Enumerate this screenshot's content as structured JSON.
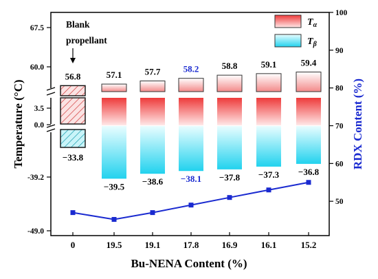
{
  "chart_data": {
    "type": "bar",
    "categories": [
      "0",
      "19.5",
      "19.1",
      "17.8",
      "16.9",
      "16.1",
      "15.2"
    ],
    "xlabel": "Bu-NENA Content (%)",
    "ylabel_left": "Temperature (°C)",
    "ylabel_right": "RDX Content (%)",
    "left_ticks": [
      "67.5",
      "60.0",
      "3.5",
      "0.0",
      "-39.2",
      "-49.0"
    ],
    "right_ticks": [
      "100",
      "90",
      "80",
      "70",
      "60",
      "50"
    ],
    "right_ylim": [
      40,
      100
    ],
    "series": [
      {
        "name": "Tα",
        "values": [
          56.8,
          57.1,
          57.7,
          58.2,
          58.8,
          59.1,
          59.4
        ],
        "labels": [
          "56.8",
          "57.1",
          "57.7",
          "58.2",
          "58.8",
          "59.1",
          "59.4"
        ],
        "color": "#ef3b3b"
      },
      {
        "name": "Tβ",
        "values": [
          -33.8,
          -39.5,
          -38.6,
          -38.1,
          -37.8,
          -37.3,
          -36.8
        ],
        "labels": [
          "−33.8",
          "−39.5",
          "−38.6",
          "−38.1",
          "−37.8",
          "−37.3",
          "−36.8"
        ],
        "color": "#2ed8f0"
      },
      {
        "name": "RDX Content",
        "axis": "right",
        "type": "line",
        "values": [
          47,
          45.2,
          47,
          49,
          51,
          53,
          55
        ],
        "color": "#1a2ad0"
      }
    ],
    "highlight_label_index": 3,
    "highlight_color": "#1a2ad0",
    "annotation": [
      "Blank",
      "propellant"
    ],
    "legend": {
      "position": "top-right",
      "items": [
        {
          "name": "T",
          "sub": "α"
        },
        {
          "name": "T",
          "sub": "β"
        }
      ]
    }
  }
}
